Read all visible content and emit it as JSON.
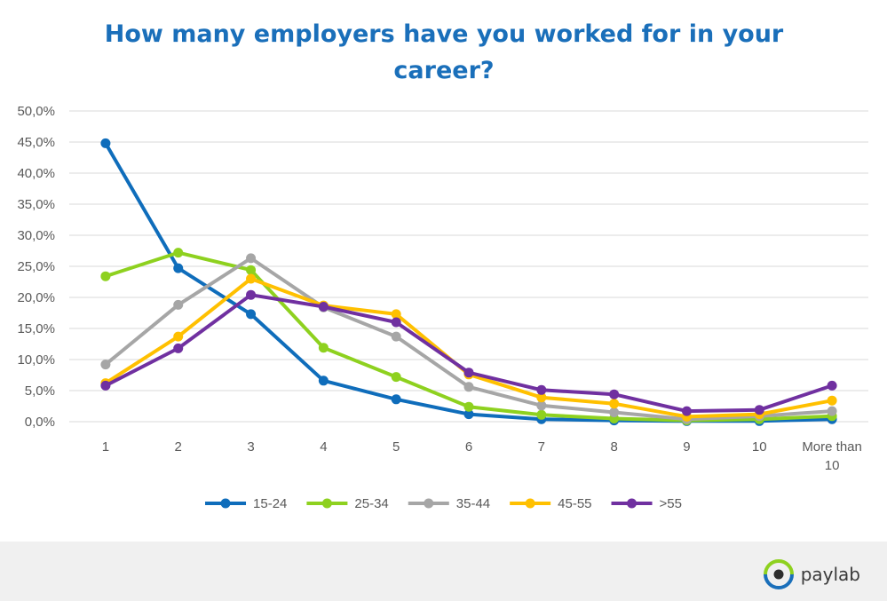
{
  "chart_data": {
    "type": "line",
    "title": "How many employers have you worked for in your career?",
    "categories": [
      "1",
      "2",
      "3",
      "4",
      "5",
      "6",
      "7",
      "8",
      "9",
      "10",
      "More than 10"
    ],
    "y_tick_labels": [
      "0,0%",
      "5,0%",
      "10,0%",
      "15,0%",
      "20,0%",
      "25,0%",
      "30,0%",
      "35,0%",
      "40,0%",
      "45,0%",
      "50,0%"
    ],
    "ylim": [
      0,
      50
    ],
    "y_unit": "percent",
    "grid": true,
    "legend_position": "bottom",
    "series": [
      {
        "name": "15-24",
        "color": "#0f6dbb",
        "values": [
          44.8,
          24.7,
          17.3,
          6.6,
          3.6,
          1.2,
          0.4,
          0.2,
          0.1,
          0.1,
          0.4
        ]
      },
      {
        "name": "25-34",
        "color": "#8ed11f",
        "values": [
          23.4,
          27.2,
          24.4,
          11.9,
          7.2,
          2.4,
          1.1,
          0.5,
          0.2,
          0.4,
          0.9
        ]
      },
      {
        "name": "35-44",
        "color": "#a6a6a6",
        "values": [
          9.2,
          18.8,
          26.3,
          18.4,
          13.7,
          5.6,
          2.6,
          1.5,
          0.4,
          0.9,
          1.7
        ]
      },
      {
        "name": "45-55",
        "color": "#ffc000",
        "values": [
          6.2,
          13.7,
          23.0,
          18.7,
          17.3,
          7.6,
          3.9,
          2.9,
          0.8,
          1.2,
          3.4
        ]
      },
      {
        "name": ">55",
        "color": "#7030a0",
        "values": [
          5.8,
          11.8,
          20.4,
          18.5,
          16.0,
          7.9,
          5.1,
          4.4,
          1.7,
          1.9,
          5.8
        ]
      }
    ]
  },
  "footer": {
    "brand_name": "paylab",
    "logo_icon": "paylab-eye-icon"
  }
}
